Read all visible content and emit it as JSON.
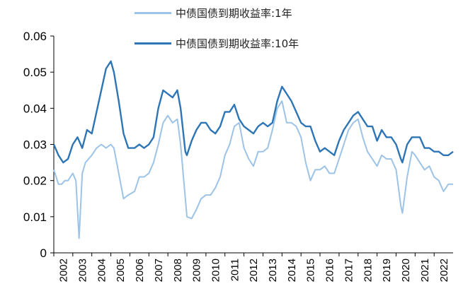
{
  "chart_data": {
    "type": "line",
    "title": "",
    "xlabel": "",
    "ylabel": "",
    "ylim": [
      0,
      0.06
    ],
    "xlim": [
      "2002-01-01",
      "2022-12-31"
    ],
    "y_ticks": [
      "0",
      "0.01",
      "0.02",
      "0.03",
      "0.04",
      "0.05",
      "0.06"
    ],
    "x_ticks": [
      "2002",
      "2003",
      "2004",
      "2005",
      "2006",
      "2007",
      "2008",
      "2009",
      "2010",
      "2011",
      "2012",
      "2013",
      "2014",
      "2015",
      "2016",
      "2017",
      "2018",
      "2019",
      "2020",
      "2021",
      "2022"
    ],
    "grid": false,
    "legend_position": "top",
    "series": [
      {
        "name": "中债国债到期收益率:1年",
        "color": "#9dc3e6",
        "points": [
          [
            "2002-01-01",
            0.023
          ],
          [
            "2002-04-01",
            0.019
          ],
          [
            "2002-06-01",
            0.019
          ],
          [
            "2002-08-01",
            0.02
          ],
          [
            "2002-10-01",
            0.02
          ],
          [
            "2003-01-01",
            0.022
          ],
          [
            "2003-03-01",
            0.02
          ],
          [
            "2003-05-01",
            0.004
          ],
          [
            "2003-07-01",
            0.022
          ],
          [
            "2003-09-01",
            0.025
          ],
          [
            "2004-01-01",
            0.027
          ],
          [
            "2004-04-01",
            0.029
          ],
          [
            "2004-07-01",
            0.03
          ],
          [
            "2004-10-01",
            0.029
          ],
          [
            "2005-01-01",
            0.03
          ],
          [
            "2005-03-01",
            0.029
          ],
          [
            "2005-06-01",
            0.022
          ],
          [
            "2005-09-01",
            0.015
          ],
          [
            "2005-12-01",
            0.016
          ],
          [
            "2006-04-01",
            0.017
          ],
          [
            "2006-07-01",
            0.021
          ],
          [
            "2006-10-01",
            0.021
          ],
          [
            "2007-01-01",
            0.022
          ],
          [
            "2007-04-01",
            0.025
          ],
          [
            "2007-07-01",
            0.03
          ],
          [
            "2007-10-01",
            0.036
          ],
          [
            "2008-01-01",
            0.038
          ],
          [
            "2008-04-01",
            0.036
          ],
          [
            "2008-07-01",
            0.037
          ],
          [
            "2008-09-01",
            0.03
          ],
          [
            "2008-12-01",
            0.015
          ],
          [
            "2009-01-01",
            0.01
          ],
          [
            "2009-04-01",
            0.0095
          ],
          [
            "2009-07-01",
            0.012
          ],
          [
            "2009-10-01",
            0.015
          ],
          [
            "2010-01-01",
            0.016
          ],
          [
            "2010-04-01",
            0.016
          ],
          [
            "2010-07-01",
            0.018
          ],
          [
            "2010-10-01",
            0.021
          ],
          [
            "2011-01-01",
            0.027
          ],
          [
            "2011-04-01",
            0.03
          ],
          [
            "2011-07-01",
            0.035
          ],
          [
            "2011-10-01",
            0.036
          ],
          [
            "2012-01-01",
            0.029
          ],
          [
            "2012-04-01",
            0.026
          ],
          [
            "2012-07-01",
            0.024
          ],
          [
            "2012-10-01",
            0.028
          ],
          [
            "2013-01-01",
            0.028
          ],
          [
            "2013-04-01",
            0.029
          ],
          [
            "2013-07-01",
            0.034
          ],
          [
            "2013-10-01",
            0.04
          ],
          [
            "2014-01-01",
            0.042
          ],
          [
            "2014-04-01",
            0.036
          ],
          [
            "2014-07-01",
            0.036
          ],
          [
            "2014-10-01",
            0.035
          ],
          [
            "2015-01-01",
            0.032
          ],
          [
            "2015-04-01",
            0.025
          ],
          [
            "2015-07-01",
            0.02
          ],
          [
            "2015-10-01",
            0.023
          ],
          [
            "2016-01-01",
            0.023
          ],
          [
            "2016-04-01",
            0.024
          ],
          [
            "2016-07-01",
            0.022
          ],
          [
            "2016-10-01",
            0.022
          ],
          [
            "2017-01-01",
            0.026
          ],
          [
            "2017-04-01",
            0.03
          ],
          [
            "2017-07-01",
            0.034
          ],
          [
            "2017-10-01",
            0.036
          ],
          [
            "2018-01-01",
            0.037
          ],
          [
            "2018-04-01",
            0.032
          ],
          [
            "2018-07-01",
            0.028
          ],
          [
            "2018-10-01",
            0.026
          ],
          [
            "2019-01-01",
            0.024
          ],
          [
            "2019-04-01",
            0.027
          ],
          [
            "2019-07-01",
            0.026
          ],
          [
            "2019-10-01",
            0.026
          ],
          [
            "2020-01-01",
            0.023
          ],
          [
            "2020-04-01",
            0.013
          ],
          [
            "2020-05-01",
            0.011
          ],
          [
            "2020-08-01",
            0.021
          ],
          [
            "2020-11-01",
            0.028
          ],
          [
            "2021-01-01",
            0.027
          ],
          [
            "2021-04-01",
            0.025
          ],
          [
            "2021-07-01",
            0.023
          ],
          [
            "2021-10-01",
            0.024
          ],
          [
            "2022-01-01",
            0.021
          ],
          [
            "2022-04-01",
            0.02
          ],
          [
            "2022-07-01",
            0.017
          ],
          [
            "2022-10-01",
            0.019
          ],
          [
            "2022-12-31",
            0.019
          ]
        ]
      },
      {
        "name": "中债国债到期收益率:10年",
        "color": "#2e75b6",
        "points": [
          [
            "2002-01-01",
            0.03
          ],
          [
            "2002-04-01",
            0.027
          ],
          [
            "2002-07-01",
            0.025
          ],
          [
            "2002-10-01",
            0.026
          ],
          [
            "2003-01-01",
            0.03
          ],
          [
            "2003-04-01",
            0.032
          ],
          [
            "2003-07-01",
            0.029
          ],
          [
            "2003-10-01",
            0.034
          ],
          [
            "2004-01-01",
            0.033
          ],
          [
            "2004-04-01",
            0.039
          ],
          [
            "2004-07-01",
            0.045
          ],
          [
            "2004-10-01",
            0.051
          ],
          [
            "2005-01-01",
            0.053
          ],
          [
            "2005-03-01",
            0.05
          ],
          [
            "2005-06-01",
            0.042
          ],
          [
            "2005-09-01",
            0.033
          ],
          [
            "2005-12-01",
            0.029
          ],
          [
            "2006-04-01",
            0.029
          ],
          [
            "2006-07-01",
            0.03
          ],
          [
            "2006-10-01",
            0.029
          ],
          [
            "2007-01-01",
            0.03
          ],
          [
            "2007-04-01",
            0.032
          ],
          [
            "2007-07-01",
            0.04
          ],
          [
            "2007-10-01",
            0.045
          ],
          [
            "2008-01-01",
            0.044
          ],
          [
            "2008-04-01",
            0.043
          ],
          [
            "2008-07-01",
            0.045
          ],
          [
            "2008-09-01",
            0.04
          ],
          [
            "2008-12-01",
            0.028
          ],
          [
            "2009-01-01",
            0.027
          ],
          [
            "2009-04-01",
            0.031
          ],
          [
            "2009-07-01",
            0.034
          ],
          [
            "2009-10-01",
            0.036
          ],
          [
            "2010-01-01",
            0.036
          ],
          [
            "2010-04-01",
            0.034
          ],
          [
            "2010-07-01",
            0.033
          ],
          [
            "2010-10-01",
            0.035
          ],
          [
            "2011-01-01",
            0.039
          ],
          [
            "2011-04-01",
            0.039
          ],
          [
            "2011-07-01",
            0.041
          ],
          [
            "2011-10-01",
            0.037
          ],
          [
            "2012-01-01",
            0.035
          ],
          [
            "2012-04-01",
            0.034
          ],
          [
            "2012-07-01",
            0.033
          ],
          [
            "2012-10-01",
            0.035
          ],
          [
            "2013-01-01",
            0.036
          ],
          [
            "2013-04-01",
            0.035
          ],
          [
            "2013-07-01",
            0.036
          ],
          [
            "2013-10-01",
            0.042
          ],
          [
            "2014-01-01",
            0.046
          ],
          [
            "2014-04-01",
            0.044
          ],
          [
            "2014-07-01",
            0.042
          ],
          [
            "2014-10-01",
            0.039
          ],
          [
            "2015-01-01",
            0.036
          ],
          [
            "2015-04-01",
            0.035
          ],
          [
            "2015-07-01",
            0.035
          ],
          [
            "2015-10-01",
            0.031
          ],
          [
            "2016-01-01",
            0.028
          ],
          [
            "2016-04-01",
            0.029
          ],
          [
            "2016-07-01",
            0.028
          ],
          [
            "2016-10-01",
            0.027
          ],
          [
            "2017-01-01",
            0.031
          ],
          [
            "2017-04-01",
            0.034
          ],
          [
            "2017-07-01",
            0.036
          ],
          [
            "2017-10-01",
            0.038
          ],
          [
            "2018-01-01",
            0.039
          ],
          [
            "2018-04-01",
            0.037
          ],
          [
            "2018-07-01",
            0.035
          ],
          [
            "2018-10-01",
            0.035
          ],
          [
            "2019-01-01",
            0.031
          ],
          [
            "2019-04-01",
            0.034
          ],
          [
            "2019-07-01",
            0.032
          ],
          [
            "2019-10-01",
            0.032
          ],
          [
            "2020-01-01",
            0.03
          ],
          [
            "2020-04-01",
            0.026
          ],
          [
            "2020-05-01",
            0.025
          ],
          [
            "2020-08-01",
            0.03
          ],
          [
            "2020-11-01",
            0.032
          ],
          [
            "2021-01-01",
            0.032
          ],
          [
            "2021-04-01",
            0.032
          ],
          [
            "2021-07-01",
            0.029
          ],
          [
            "2021-10-01",
            0.029
          ],
          [
            "2022-01-01",
            0.028
          ],
          [
            "2022-04-01",
            0.028
          ],
          [
            "2022-07-01",
            0.027
          ],
          [
            "2022-10-01",
            0.027
          ],
          [
            "2022-12-31",
            0.028
          ]
        ]
      }
    ]
  }
}
